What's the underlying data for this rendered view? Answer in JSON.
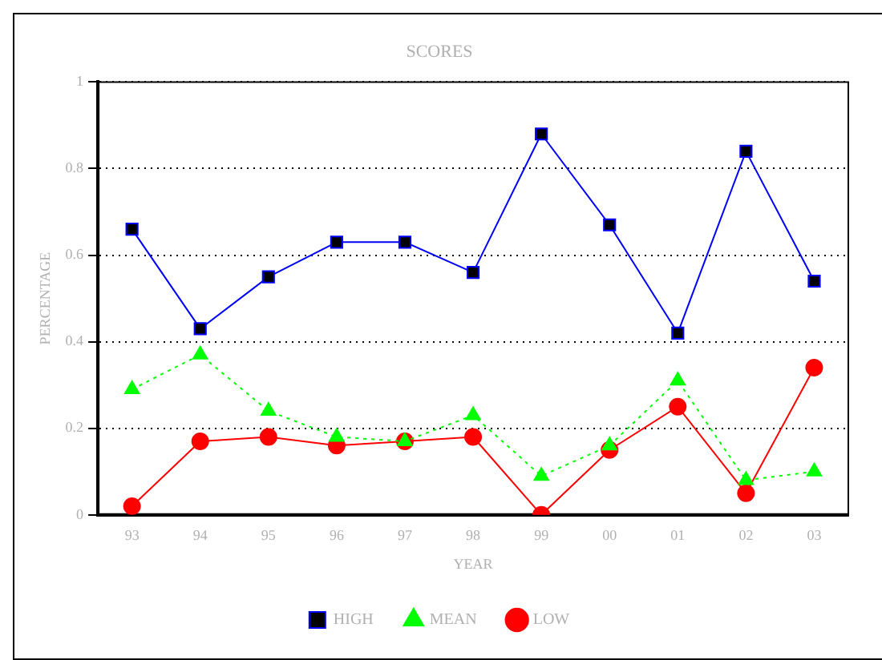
{
  "chart_data": {
    "type": "line",
    "title": "SCORES",
    "xlabel": "YEAR",
    "ylabel": "PERCENTAGE",
    "categories": [
      "93",
      "94",
      "95",
      "96",
      "97",
      "98",
      "99",
      "00",
      "01",
      "02",
      "03"
    ],
    "series": [
      {
        "name": "HIGH",
        "color": "#0000ff",
        "marker": "square",
        "line_style": "solid",
        "values": [
          0.66,
          0.43,
          0.55,
          0.63,
          0.63,
          0.56,
          0.88,
          0.67,
          0.42,
          0.84,
          0.54
        ]
      },
      {
        "name": "MEAN",
        "color": "#00ff00",
        "marker": "triangle",
        "line_style": "dotted",
        "values": [
          0.29,
          0.37,
          0.24,
          0.18,
          0.17,
          0.23,
          0.09,
          0.16,
          0.31,
          0.08,
          0.1
        ]
      },
      {
        "name": "LOW",
        "color": "#ff0000",
        "marker": "circle",
        "line_style": "solid",
        "values": [
          0.02,
          0.17,
          0.18,
          0.16,
          0.17,
          0.18,
          0.0,
          0.15,
          0.25,
          0.05,
          0.34
        ]
      }
    ],
    "ylim": [
      0,
      1
    ],
    "yticks": [
      0,
      0.2,
      0.4,
      0.6,
      0.8,
      1
    ],
    "grid": "y",
    "legend": "bottom"
  }
}
